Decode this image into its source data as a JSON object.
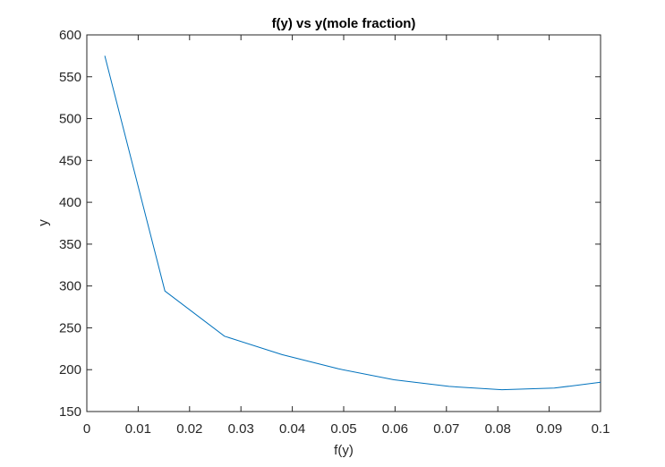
{
  "chart_data": {
    "type": "line",
    "title": "f(y) vs y(mole fraction)",
    "xlabel": "f(y)",
    "ylabel": "y",
    "xlim": [
      0,
      0.1
    ],
    "ylim": [
      150,
      600
    ],
    "x_ticks": [
      0,
      0.01,
      0.02,
      0.03,
      0.04,
      0.05,
      0.06,
      0.07,
      0.08,
      0.09,
      0.1
    ],
    "x_tick_labels": [
      "0",
      "0.01",
      "0.02",
      "0.03",
      "0.04",
      "0.05",
      "0.06",
      "0.07",
      "0.08",
      "0.09",
      "0.1"
    ],
    "y_ticks": [
      150,
      200,
      250,
      300,
      350,
      400,
      450,
      500,
      550,
      600
    ],
    "y_tick_labels": [
      "150",
      "200",
      "250",
      "300",
      "350",
      "400",
      "450",
      "500",
      "550",
      "600"
    ],
    "grid": false,
    "box": true,
    "series": [
      {
        "color": "#0072bd",
        "x": [
          0.0035,
          0.0152,
          0.0268,
          0.038,
          0.049,
          0.0598,
          0.0705,
          0.0808,
          0.091,
          0.1
        ],
        "y": [
          575,
          294,
          240,
          218,
          201,
          188,
          180,
          176,
          178,
          185
        ]
      }
    ]
  }
}
